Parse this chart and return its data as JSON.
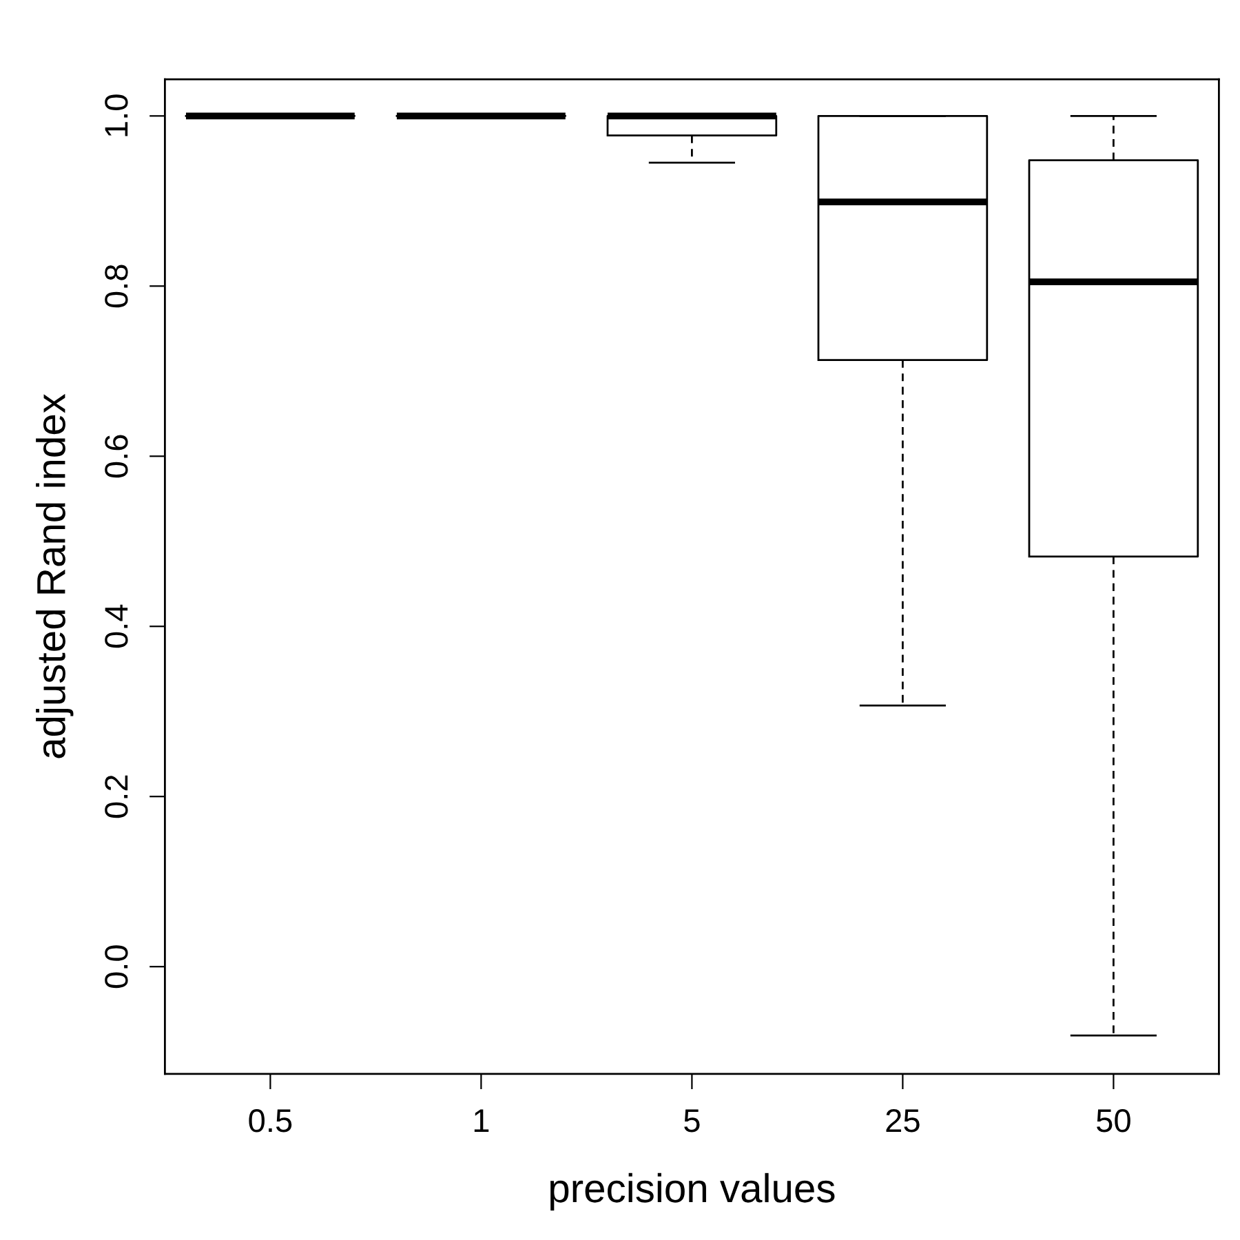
{
  "chart_data": {
    "type": "box",
    "xlabel": "precision values",
    "ylabel": "adjusted Rand index",
    "categories": [
      "0.5",
      "1",
      "5",
      "25",
      "50"
    ],
    "boxes": [
      {
        "low": 1.0,
        "q1": 1.0,
        "median": 1.0,
        "q3": 1.0,
        "high": 1.0
      },
      {
        "low": 1.0,
        "q1": 1.0,
        "median": 1.0,
        "q3": 1.0,
        "high": 1.0
      },
      {
        "low": 0.945,
        "q1": 0.977,
        "median": 1.0,
        "q3": 1.0,
        "high": 1.0
      },
      {
        "low": 0.307,
        "q1": 0.713,
        "median": 0.899,
        "q3": 1.0,
        "high": 1.0
      },
      {
        "low": -0.081,
        "q1": 0.482,
        "median": 0.805,
        "q3": 0.948,
        "high": 1.0
      }
    ],
    "ylim": [
      -0.126,
      1.043
    ],
    "yticks": [
      {
        "value": 0,
        "label": "0.0"
      },
      {
        "value": 0.2,
        "label": "0.2"
      },
      {
        "value": 0.4,
        "label": "0.4"
      },
      {
        "value": 0.6,
        "label": "0.6"
      },
      {
        "value": 0.8,
        "label": "0.8"
      },
      {
        "value": 1,
        "label": "1.0"
      }
    ]
  }
}
